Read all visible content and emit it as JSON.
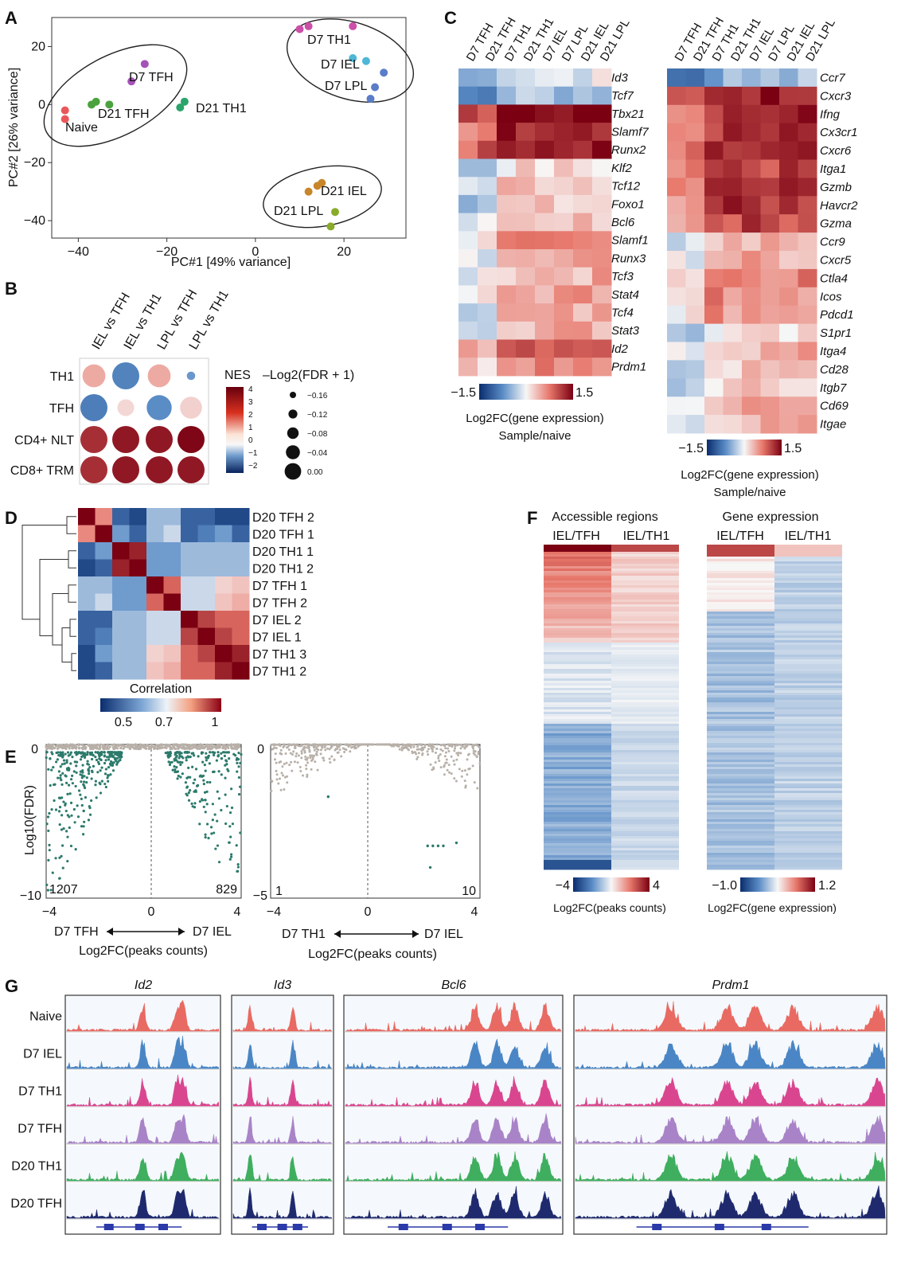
{
  "panels": [
    "A",
    "B",
    "C",
    "D",
    "E",
    "F",
    "G"
  ],
  "colors": {
    "naive": "#e9575a",
    "tfh": "#4aa33e",
    "th1": "#2aa46a",
    "d7th1": "#cc4fa8",
    "iel": "#4db7d6",
    "lpl": "#5a7cc9",
    "d21iel": "#c8862a",
    "d21lpl": "#8aaa2a",
    "gray": "#b8b0a8",
    "teal": "#2c7a6b"
  },
  "panelA": {
    "chart_data": {
      "type": "scatter",
      "xlabel": "PC#1 [49% variance]",
      "ylabel": "PC#2 [26% variance]",
      "xticks": [
        "−40",
        "−20",
        "0",
        "20"
      ],
      "yticks": [
        "20",
        "0",
        "−20",
        "−40"
      ],
      "xlim": [
        -46,
        34
      ],
      "ylim": [
        -46,
        30
      ],
      "groups": [
        {
          "name": "Naive",
          "points": [
            [
              -43,
              -2
            ],
            [
              -43,
              -5
            ]
          ]
        },
        {
          "name": "D7 TFH",
          "points": [
            [
              -25,
              14
            ],
            [
              -28,
              8
            ]
          ]
        },
        {
          "name": "D21 TFH",
          "points": [
            [
              -36,
              1
            ],
            [
              -37,
              0
            ],
            [
              -33,
              0
            ]
          ]
        },
        {
          "name": "D21 TH1",
          "points": [
            [
              -16,
              1
            ],
            [
              -17,
              -1
            ]
          ]
        },
        {
          "name": "D7 TH1",
          "points": [
            [
              10,
              26
            ],
            [
              12,
              27
            ],
            [
              22,
              27
            ]
          ]
        },
        {
          "name": "D7 IEL",
          "points": [
            [
              25,
              15
            ],
            [
              22,
              16
            ]
          ]
        },
        {
          "name": "D7 LPL",
          "points": [
            [
              29,
              11
            ],
            [
              27,
              6
            ],
            [
              26,
              2
            ]
          ]
        },
        {
          "name": "D21 IEL",
          "points": [
            [
              12,
              -30
            ],
            [
              14,
              -28
            ],
            [
              15,
              -27
            ]
          ]
        },
        {
          "name": "D21 LPL",
          "points": [
            [
              18,
              -37
            ],
            [
              17,
              -42
            ]
          ]
        }
      ],
      "labels": {
        "naive": "Naive",
        "d7tfh": "D7 TFH",
        "d21tfh": "D21 TFH",
        "d21th1": "D21 TH1",
        "d7th1": "D7 TH1",
        "d7iel": "D7 IEL",
        "d7lpl": "D7 LPL",
        "d21iel": "D21 IEL",
        "d21lpl": "D21 LPL"
      }
    }
  },
  "panelB": {
    "columns": [
      "IEL vs TFH",
      "IEL vs TH1",
      "LPL vs TFH",
      "LPL vs TH1"
    ],
    "rows": [
      "TH1",
      "TFH",
      "CD4+ NLT",
      "CD8+ TRM"
    ],
    "nes": [
      [
        1.2,
        -2.2,
        1.2,
        -1.8
      ],
      [
        -2.3,
        0.5,
        -2.0,
        0.6
      ],
      [
        3.2,
        3.6,
        3.6,
        3.9
      ],
      [
        3.2,
        3.6,
        3.6,
        3.6
      ]
    ],
    "size": [
      [
        0.8,
        1.0,
        0.8,
        0.1
      ],
      [
        1.0,
        0.5,
        0.9,
        0.75
      ],
      [
        1.0,
        1.0,
        1.0,
        1.0
      ],
      [
        1.0,
        1.0,
        1.0,
        1.0
      ]
    ],
    "nes_title": "NES",
    "nes_ticks": [
      "4",
      "3",
      "2",
      "1",
      "0",
      "−1",
      "−2"
    ],
    "size_title": "–Log2(FDR + 1)",
    "size_ticks": [
      "−0.16",
      "−0.12",
      "−0.08",
      "−0.04",
      "0.00"
    ]
  },
  "panelC": {
    "samples": [
      "D7 TFH",
      "D21 TFH",
      "D7 TH1",
      "D21 TH1",
      "D7 IEL",
      "D7 LPL",
      "D21 IEL",
      "D21 LPL"
    ],
    "genes_left": [
      "Id3",
      "Tcf7",
      "Tbx21",
      "Slamf7",
      "Runx2",
      "Klf2",
      "Tcf12",
      "Foxo1",
      "Bcl6",
      "Slamf1",
      "Runx3",
      "Tcf3",
      "Stat4",
      "Tcf4",
      "Stat3",
      "Id2",
      "Prdm1"
    ],
    "profile_left": [
      -0.2,
      -0.5,
      1.4,
      1.1,
      1.2,
      0.0,
      0.2,
      0.05,
      0.2,
      0.4,
      0.35,
      0.25,
      0.35,
      0.25,
      0.3,
      0.9,
      0.6
    ],
    "genes_right": [
      "Ccr7",
      "Cxcr3",
      "Ifng",
      "Cx3cr1",
      "Cxcr6",
      "Itga1",
      "Gzmb",
      "Havcr2",
      "Gzma",
      "Ccr9",
      "Cxcr5",
      "Ctla4",
      "Icos",
      "Pdcd1",
      "S1pr1",
      "Itga4",
      "Cd28",
      "Itgb7",
      "Cd69",
      "Itgae"
    ],
    "profile_right": [
      -0.6,
      1.2,
      1.1,
      1.0,
      1.0,
      0.9,
      1.0,
      1.0,
      0.9,
      0.2,
      0.3,
      0.6,
      0.5,
      0.45,
      -0.1,
      0.25,
      0.1,
      0.05,
      0.3,
      0.2
    ],
    "scale_min": "−1.5",
    "scale_max": "1.5",
    "legend_line1": "Log2FC(gene expression)",
    "legend_line2": "Sample/naive"
  },
  "panelD": {
    "samples": [
      "D20 TFH 2",
      "D20 TFH 1",
      "D20 TH1 1",
      "D20 TH1 2",
      "D7 TFH 1",
      "D7 TFH 2",
      "D7 IEL 2",
      "D7 IEL 1",
      "D7 TH1 3",
      "D7 TH1 2"
    ],
    "legend_title": "Correlation",
    "legend_ticks": [
      "0.5",
      "0.7",
      "1"
    ]
  },
  "panelE": {
    "plots": [
      {
        "chart_data": {
          "type": "scatter",
          "xlim": [
            -4,
            4
          ],
          "ylim": [
            -10,
            0
          ],
          "xticks": [
            "−4",
            "0",
            "4"
          ],
          "yticks": [
            "0",
            "−10"
          ],
          "ylabel": "Log10(FDR)",
          "xlabel": "Log2FC(peaks counts)",
          "left_label": "D7 TFH",
          "right_label": "D7 IEL",
          "count_left": "1207",
          "count_right": "829"
        }
      },
      {
        "chart_data": {
          "type": "scatter",
          "xlim": [
            -4,
            4
          ],
          "ylim": [
            -5,
            0
          ],
          "xticks": [
            "−4",
            "0",
            "4"
          ],
          "yticks": [
            "0",
            "−5"
          ],
          "xlabel": "Log2FC(peaks counts)",
          "left_label": "D7 TH1",
          "right_label": "D7 IEL",
          "count_left": "1",
          "count_right": "10"
        }
      }
    ]
  },
  "panelF": {
    "left_title": "Accessible regions",
    "left_cols": [
      "IEL/TFH",
      "IEL/TH1"
    ],
    "right_title": "Gene expression",
    "right_cols": [
      "IEL/TFH",
      "IEL/TH1"
    ],
    "left_scale": [
      "−4",
      "4"
    ],
    "right_scale": [
      "−1.0",
      "1.2"
    ],
    "left_legend": "Log2FC(peaks counts)",
    "right_legend": "Log2FC(gene expression)"
  },
  "panelG": {
    "genes": [
      "Id2",
      "Id3",
      "Bcl6",
      "Prdm1"
    ],
    "tracks": [
      {
        "name": "Naive",
        "color": "#e86a62"
      },
      {
        "name": "D7 IEL",
        "color": "#4a86c5"
      },
      {
        "name": "D7 TH1",
        "color": "#d9468f"
      },
      {
        "name": "D7 TFH",
        "color": "#a983c7"
      },
      {
        "name": "D20 TH1",
        "color": "#3fae5f"
      },
      {
        "name": "D20 TFH",
        "color": "#1f2a6e"
      }
    ]
  }
}
